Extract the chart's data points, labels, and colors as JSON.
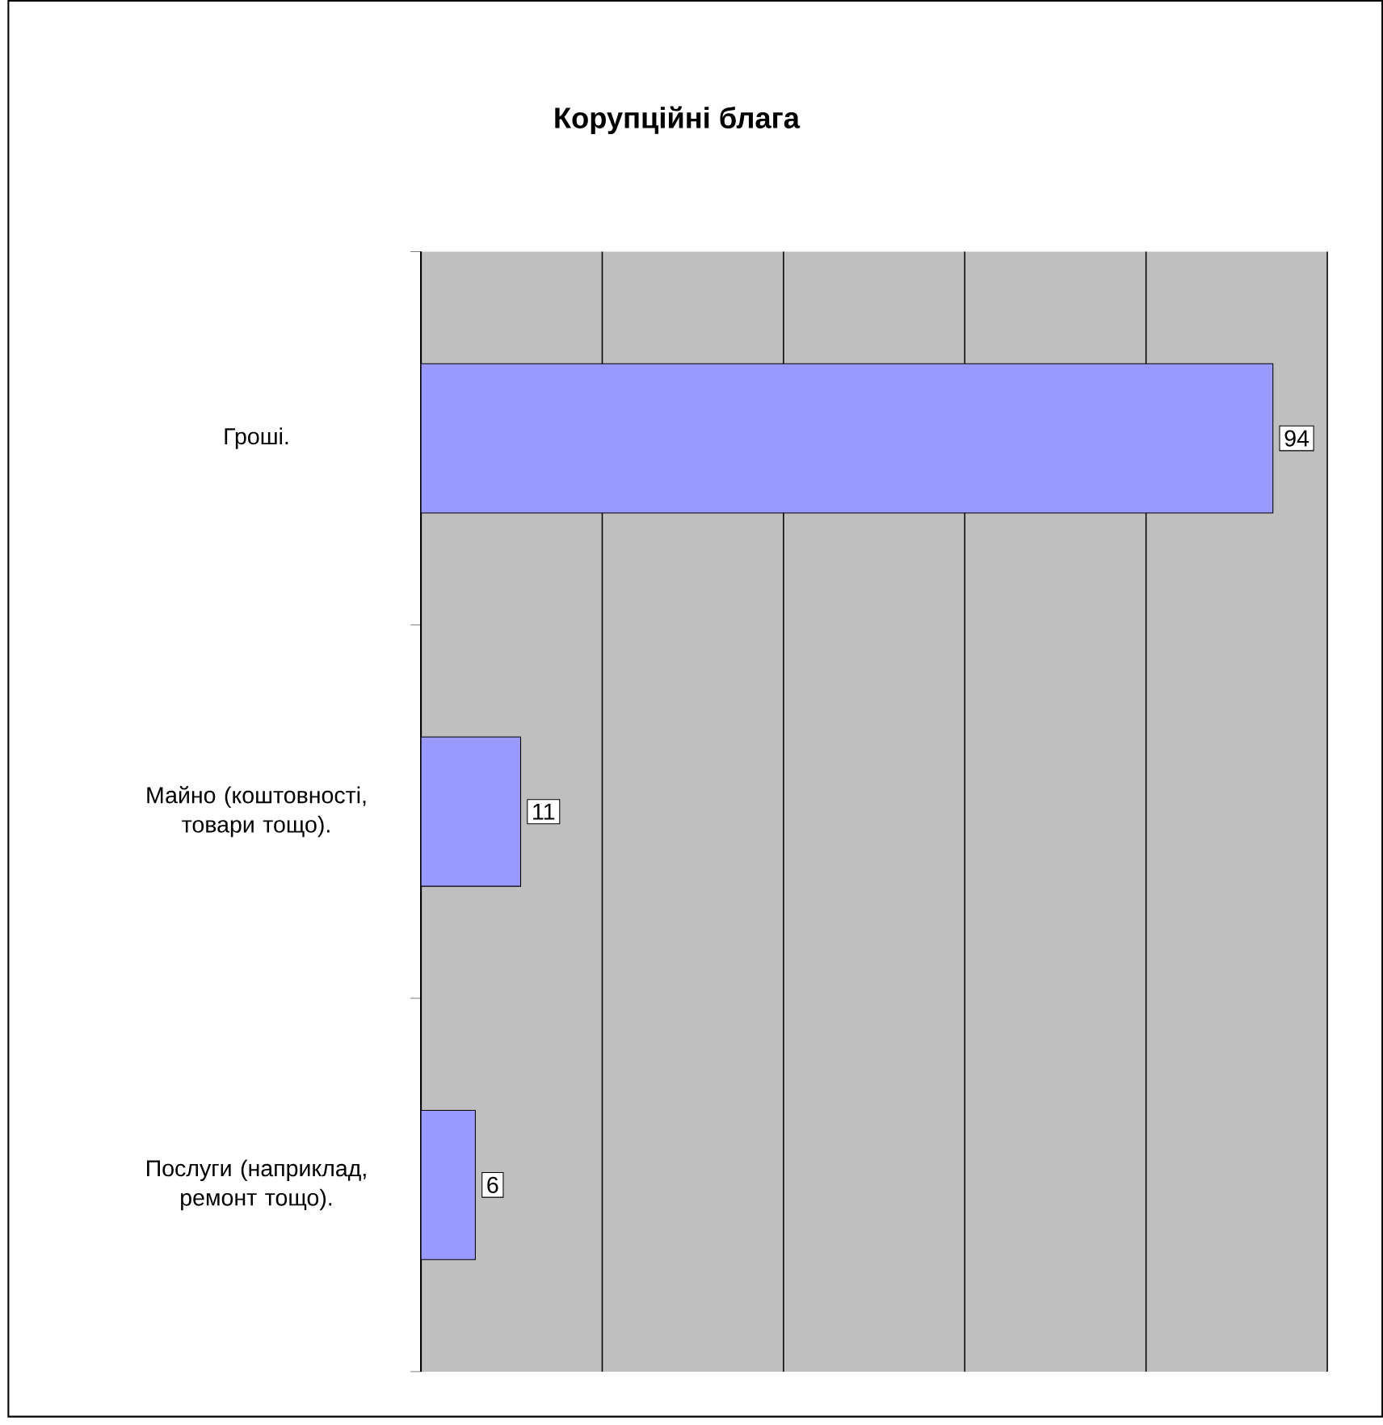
{
  "chart_data": {
    "type": "bar",
    "orientation": "horizontal",
    "title": "Корупційні блага",
    "categories": [
      "Гроші.",
      "Майно (коштовності, товари тощо).",
      "Послуги (наприклад, ремонт тощо)."
    ],
    "values": [
      94,
      11,
      6
    ],
    "value_labels": [
      "94",
      "11",
      "6"
    ],
    "color": "#9999ff",
    "xlim": [
      0,
      100
    ],
    "xticks": [
      0,
      20,
      40,
      60,
      80,
      100
    ],
    "grid": "x",
    "tick_labels": "y"
  }
}
